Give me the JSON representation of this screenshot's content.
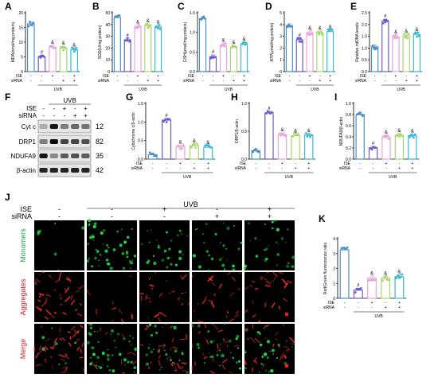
{
  "panel_letters": [
    "A",
    "B",
    "C",
    "D",
    "E",
    "F",
    "G",
    "H",
    "I",
    "J",
    "K"
  ],
  "group_colors": [
    "#4a90c8",
    "#6a5acd",
    "#e9a4d8",
    "#a8d86a",
    "#37b7d6"
  ],
  "row_labels": {
    "ise": "ISE",
    "sirna": "siRNA",
    "uvb": "UVB"
  },
  "treat_signs": {
    "ise": [
      "-",
      "-",
      "+",
      "-",
      "+"
    ],
    "sirna": [
      "-",
      "-",
      "-",
      "+",
      "+"
    ]
  },
  "western": {
    "header_uvb": "UVB",
    "ise_label": "ISE",
    "sirna_label": "siRNA",
    "ise_signs": [
      "-",
      "-",
      "+",
      "-",
      "+"
    ],
    "sirna_signs": [
      "-",
      "-",
      "-",
      "+",
      "+"
    ],
    "bands": [
      {
        "name": "Cyt c",
        "kda": "12"
      },
      {
        "name": "DRP1",
        "kda": "82"
      },
      {
        "name": "NDUFA9",
        "kda": "35"
      },
      {
        "name": "β-actin",
        "kda": "42"
      }
    ]
  },
  "micro": {
    "uvb_label": "UVB",
    "ise_label": "ISE",
    "sirna_label": "siRNA",
    "ise_signs": [
      "-",
      "-",
      "+",
      "-",
      "+"
    ],
    "sirna_signs": [
      "-",
      "-",
      "-",
      "+",
      "+"
    ],
    "rows": [
      {
        "name": "Monomers",
        "color": "#1aa84a"
      },
      {
        "name": "Aggregates",
        "color": "#e0202a"
      },
      {
        "name": "Merge",
        "color": "#e0202a"
      }
    ]
  },
  "chart_data": [
    {
      "panel": "A",
      "type": "bar",
      "ylabel": "MDA(nmol/mg protein)",
      "ylim": [
        0,
        20
      ],
      "ticks": [
        0,
        5,
        10,
        15,
        20
      ],
      "values": [
        16.2,
        5.0,
        8.3,
        8.0,
        7.4
      ],
      "marks": [
        "",
        "#",
        "&",
        "&",
        "&"
      ]
    },
    {
      "panel": "B",
      "type": "bar",
      "ylabel": "SOD(U/mg protein)",
      "ylim": [
        0,
        50
      ],
      "ticks": [
        0,
        10,
        20,
        30,
        40,
        50
      ],
      "values": [
        46,
        27,
        38,
        39,
        38
      ],
      "marks": [
        "",
        "#",
        "&",
        "&",
        "&"
      ]
    },
    {
      "panel": "C",
      "type": "bar",
      "ylabel": "GSH(μmol/mg protein)",
      "ylim": [
        0,
        1.5
      ],
      "ticks": [
        0.0,
        0.5,
        1.0,
        1.5
      ],
      "values": [
        1.35,
        0.38,
        0.67,
        0.62,
        0.7
      ],
      "marks": [
        "",
        "#",
        "&",
        "&",
        "&"
      ]
    },
    {
      "panel": "D",
      "type": "bar",
      "ylabel": "ATP(μmol/mg protein)",
      "ylim": [
        0,
        5
      ],
      "ticks": [
        0,
        1,
        2,
        3,
        4,
        5
      ],
      "values": [
        3.9,
        2.7,
        3.3,
        3.3,
        3.4
      ],
      "marks": [
        "",
        "#",
        "&",
        "&",
        "&"
      ]
    },
    {
      "panel": "E",
      "type": "bar",
      "ylabel": "Relative mtDNA levels",
      "ylim": [
        0,
        2.5
      ],
      "ticks": [
        0.0,
        0.5,
        1.0,
        1.5,
        2.0,
        2.5
      ],
      "values": [
        1.05,
        2.15,
        1.48,
        1.52,
        1.58
      ],
      "marks": [
        "",
        "#",
        "&",
        "&",
        "&"
      ]
    },
    {
      "panel": "G",
      "type": "bar",
      "ylabel": "Cytochrome c/β-actin",
      "ylim": [
        0,
        1.5
      ],
      "ticks": [
        0.0,
        0.5,
        1.0,
        1.5
      ],
      "values": [
        0.12,
        1.05,
        0.33,
        0.36,
        0.32
      ],
      "marks": [
        "",
        "#",
        "&",
        "&",
        "&"
      ]
    },
    {
      "panel": "H",
      "type": "bar",
      "ylabel": "DRP1/β-actin",
      "ylim": [
        0,
        1.0
      ],
      "ticks": [
        0.0,
        0.5,
        1.0
      ],
      "values": [
        0.15,
        0.83,
        0.44,
        0.42,
        0.43
      ],
      "marks": [
        "",
        "#",
        "&",
        "&",
        "&"
      ]
    },
    {
      "panel": "I",
      "type": "bar",
      "ylabel": "NDUFA9/β-actin",
      "ylim": [
        0,
        1.0
      ],
      "ticks": [
        0.0,
        0.2,
        0.4,
        0.6,
        0.8,
        1.0
      ],
      "values": [
        0.8,
        0.2,
        0.4,
        0.43,
        0.42
      ],
      "marks": [
        "",
        "#",
        "&",
        "&",
        "&"
      ]
    },
    {
      "panel": "K",
      "type": "bar",
      "ylabel": "Red/Green fluorescence ratio",
      "ylim": [
        0,
        4
      ],
      "ticks": [
        0,
        1,
        2,
        3,
        4
      ],
      "values": [
        3.25,
        0.55,
        1.35,
        1.35,
        1.45
      ],
      "marks": [
        "",
        "#",
        "&",
        "&",
        "&"
      ]
    }
  ]
}
